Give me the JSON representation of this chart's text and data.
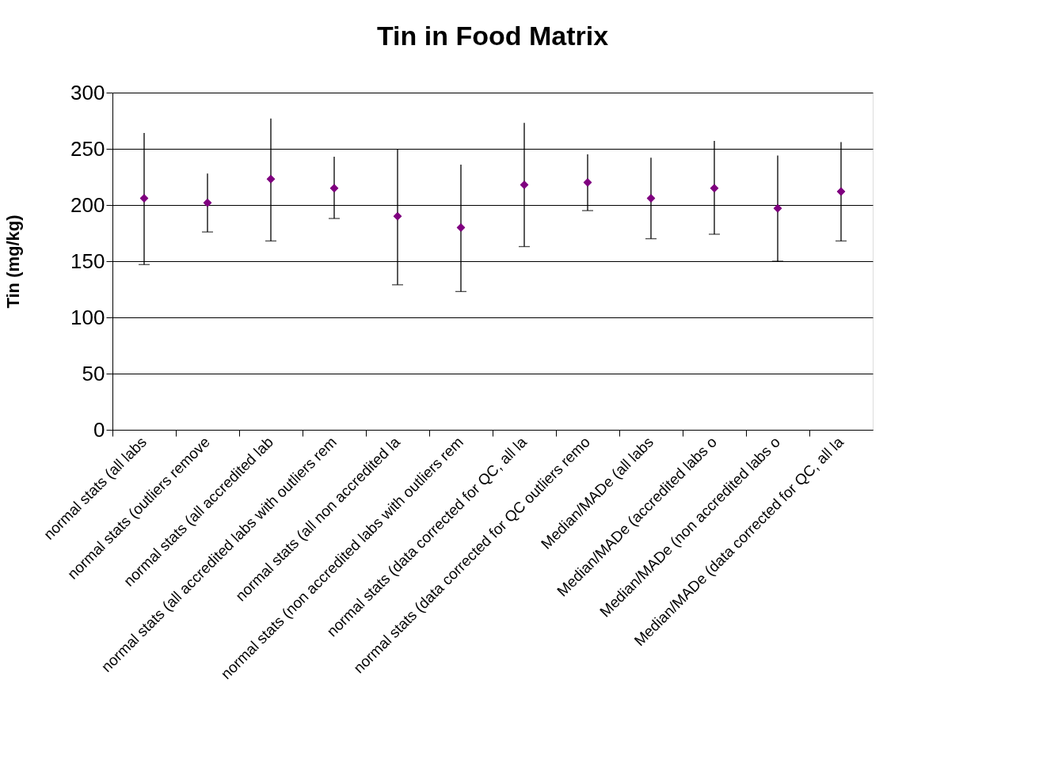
{
  "chart_data": {
    "type": "scatter",
    "title": "Tin in Food Matrix",
    "ylabel": "Tin (mg/kg)",
    "categories": [
      "normal stats (all labs",
      "normal stats (outliers remove",
      "normal stats (all accredited lab",
      "normal stats (all accredited labs with outliers rem",
      "normal stats (all non accredited la",
      "normal stats (non accredited labs with outliers rem",
      "normal stats (data corrected for QC, all la",
      "normal stats (data corrected for QC outliers remo",
      "Median/MADe (all labs",
      "Median/MADe (accredited labs o",
      "Median/MADe (non accredited labs o",
      "Median/MADe (data corrected for QC, all la"
    ],
    "series": [
      {
        "color": "#800080",
        "values": [
          206,
          202,
          223,
          215,
          190,
          180,
          218,
          220,
          206,
          215,
          197,
          212
        ],
        "errors": [
          [
            147,
            264
          ],
          [
            176,
            228
          ],
          [
            168,
            277
          ],
          [
            188,
            243
          ],
          [
            129,
            250
          ],
          [
            123,
            236
          ],
          [
            163,
            273
          ],
          [
            195,
            245
          ],
          [
            170,
            242
          ],
          [
            174,
            257
          ],
          [
            150,
            244
          ],
          [
            168,
            256
          ]
        ]
      }
    ],
    "ylim": [
      0,
      300
    ],
    "yticks": [
      0,
      50,
      100,
      150,
      200,
      250,
      300
    ],
    "grid": "y",
    "marker": "diamond"
  }
}
